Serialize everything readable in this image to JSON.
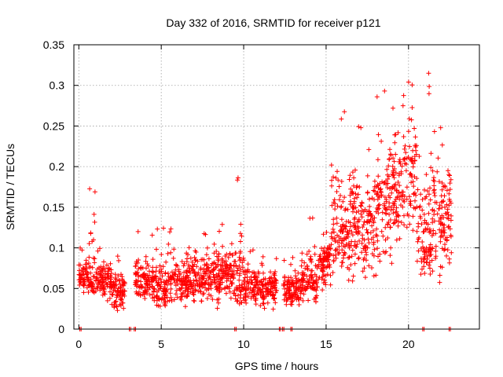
{
  "chart_data": {
    "type": "scatter",
    "title": "Day 332 of 2016, SRMTID for receiver p121",
    "xlabel": "GPS time / hours",
    "ylabel": "SRMTID / TECUs",
    "xlim": [
      -0.3,
      24.3
    ],
    "ylim": [
      0,
      0.35
    ],
    "x_ticks": [
      0,
      5,
      10,
      15,
      20
    ],
    "x_tick_labels": [
      "0",
      "5",
      "10",
      "15",
      "20"
    ],
    "y_ticks": [
      0,
      0.05,
      0.1,
      0.15,
      0.2,
      0.25,
      0.3,
      0.35
    ],
    "y_tick_labels": [
      "0",
      "0.05",
      "0.1",
      "0.15",
      "0.2",
      "0.25",
      "0.3",
      "0.35"
    ],
    "grid": true,
    "marker": "plus",
    "color": "#ff0000",
    "series_envelope": [
      {
        "x_start": 0.0,
        "x_end": 0.5,
        "lo": 0.04,
        "mid": 0.065,
        "hi": 0.1
      },
      {
        "x_start": 0.5,
        "x_end": 1.0,
        "lo": 0.035,
        "mid": 0.06,
        "hi": 0.18
      },
      {
        "x_start": 1.0,
        "x_end": 2.0,
        "lo": 0.03,
        "mid": 0.06,
        "hi": 0.1
      },
      {
        "x_start": 2.0,
        "x_end": 2.8,
        "lo": 0.01,
        "mid": 0.05,
        "hi": 0.09
      },
      {
        "x_start": 3.4,
        "x_end": 4.5,
        "lo": 0.03,
        "mid": 0.06,
        "hi": 0.12
      },
      {
        "x_start": 4.5,
        "x_end": 5.5,
        "lo": 0.015,
        "mid": 0.05,
        "hi": 0.13
      },
      {
        "x_start": 5.5,
        "x_end": 7.0,
        "lo": 0.02,
        "mid": 0.06,
        "hi": 0.13
      },
      {
        "x_start": 7.0,
        "x_end": 8.5,
        "lo": 0.02,
        "mid": 0.065,
        "hi": 0.12
      },
      {
        "x_start": 8.5,
        "x_end": 9.5,
        "lo": 0.03,
        "mid": 0.065,
        "hi": 0.13
      },
      {
        "x_start": 9.5,
        "x_end": 10.0,
        "lo": 0.02,
        "mid": 0.055,
        "hi": 0.19
      },
      {
        "x_start": 10.0,
        "x_end": 11.0,
        "lo": 0.02,
        "mid": 0.055,
        "hi": 0.1
      },
      {
        "x_start": 11.0,
        "x_end": 12.0,
        "lo": 0.02,
        "mid": 0.05,
        "hi": 0.09
      },
      {
        "x_start": 12.4,
        "x_end": 13.5,
        "lo": 0.02,
        "mid": 0.05,
        "hi": 0.09
      },
      {
        "x_start": 13.5,
        "x_end": 14.5,
        "lo": 0.02,
        "mid": 0.06,
        "hi": 0.14
      },
      {
        "x_start": 14.5,
        "x_end": 15.3,
        "lo": 0.04,
        "mid": 0.085,
        "hi": 0.12
      },
      {
        "x_start": 15.3,
        "x_end": 16.5,
        "lo": 0.05,
        "mid": 0.12,
        "hi": 0.27
      },
      {
        "x_start": 16.5,
        "x_end": 18.0,
        "lo": 0.04,
        "mid": 0.13,
        "hi": 0.25
      },
      {
        "x_start": 18.0,
        "x_end": 19.0,
        "lo": 0.05,
        "mid": 0.16,
        "hi": 0.3
      },
      {
        "x_start": 19.0,
        "x_end": 20.0,
        "lo": 0.08,
        "mid": 0.18,
        "hi": 0.29
      },
      {
        "x_start": 20.0,
        "x_end": 20.5,
        "lo": 0.1,
        "mid": 0.2,
        "hi": 0.31
      },
      {
        "x_start": 20.5,
        "x_end": 21.5,
        "lo": 0.04,
        "mid": 0.1,
        "hi": 0.32
      },
      {
        "x_start": 21.5,
        "x_end": 22.6,
        "lo": 0.04,
        "mid": 0.14,
        "hi": 0.25
      }
    ],
    "zero_points_x": [
      0.1,
      3.1,
      3.4,
      9.5,
      12.2,
      12.4,
      12.9,
      20.9,
      22.5
    ]
  }
}
